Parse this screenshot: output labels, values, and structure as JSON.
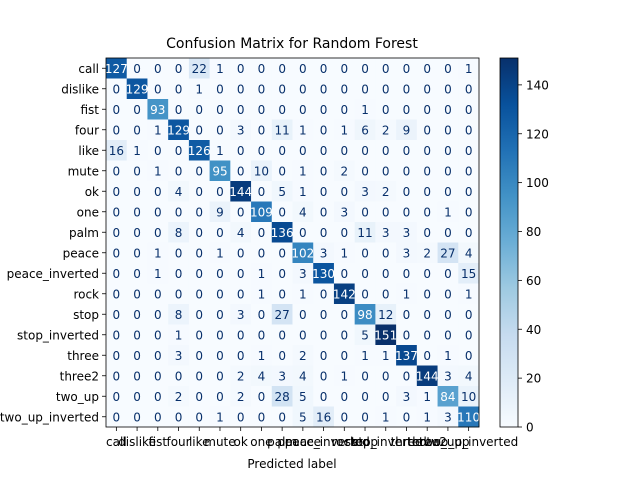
{
  "chart_data": {
    "type": "heatmap",
    "title": "Confusion Matrix for Random Forest",
    "xlabel": "Predicted label",
    "ylabel": "",
    "row_labels": [
      "call",
      "dislike",
      "fist",
      "four",
      "like",
      "mute",
      "ok",
      "one",
      "palm",
      "peace",
      "peace_inverted",
      "rock",
      "stop",
      "stop_inverted",
      "three",
      "three2",
      "two_up",
      "two_up_inverted"
    ],
    "col_labels": [
      "call",
      "dislike",
      "fist",
      "four",
      "like",
      "mute",
      "ok",
      "one",
      "palm",
      "peace",
      "peace_inverted",
      "rock",
      "stop",
      "stop_inverted",
      "three",
      "three2",
      "two_up",
      "two_up_inverted"
    ],
    "values": [
      [
        127,
        0,
        0,
        0,
        22,
        1,
        0,
        0,
        0,
        0,
        0,
        0,
        0,
        0,
        0,
        0,
        0,
        1
      ],
      [
        0,
        129,
        0,
        0,
        1,
        0,
        0,
        0,
        0,
        0,
        0,
        0,
        0,
        0,
        0,
        0,
        0,
        0
      ],
      [
        0,
        0,
        93,
        0,
        0,
        0,
        0,
        0,
        0,
        0,
        0,
        0,
        1,
        0,
        0,
        0,
        0,
        0
      ],
      [
        0,
        0,
        1,
        129,
        0,
        0,
        3,
        0,
        11,
        1,
        0,
        1,
        6,
        2,
        9,
        0,
        0,
        0
      ],
      [
        16,
        1,
        0,
        0,
        126,
        1,
        0,
        0,
        0,
        0,
        0,
        0,
        0,
        0,
        0,
        0,
        0,
        0
      ],
      [
        0,
        0,
        1,
        0,
        0,
        95,
        0,
        10,
        0,
        1,
        0,
        2,
        0,
        0,
        0,
        0,
        0,
        0
      ],
      [
        0,
        0,
        0,
        4,
        0,
        0,
        144,
        0,
        5,
        1,
        0,
        0,
        3,
        2,
        0,
        0,
        0,
        0
      ],
      [
        0,
        0,
        0,
        0,
        0,
        9,
        0,
        109,
        0,
        4,
        0,
        3,
        0,
        0,
        0,
        0,
        1,
        0
      ],
      [
        0,
        0,
        0,
        8,
        0,
        0,
        4,
        0,
        136,
        0,
        0,
        0,
        11,
        3,
        3,
        0,
        0,
        0
      ],
      [
        0,
        0,
        1,
        0,
        0,
        1,
        0,
        0,
        0,
        102,
        3,
        1,
        0,
        0,
        3,
        2,
        27,
        4
      ],
      [
        0,
        0,
        1,
        0,
        0,
        0,
        0,
        1,
        0,
        3,
        130,
        0,
        0,
        0,
        0,
        0,
        0,
        15
      ],
      [
        0,
        0,
        0,
        0,
        0,
        0,
        0,
        1,
        0,
        1,
        0,
        142,
        0,
        0,
        1,
        0,
        0,
        1
      ],
      [
        0,
        0,
        0,
        8,
        0,
        0,
        3,
        0,
        27,
        0,
        0,
        0,
        98,
        12,
        0,
        0,
        0,
        0
      ],
      [
        0,
        0,
        0,
        1,
        0,
        0,
        0,
        0,
        0,
        0,
        0,
        0,
        5,
        151,
        0,
        0,
        0,
        0
      ],
      [
        0,
        0,
        0,
        3,
        0,
        0,
        0,
        1,
        0,
        2,
        0,
        0,
        1,
        1,
        137,
        0,
        1,
        0
      ],
      [
        0,
        0,
        0,
        0,
        0,
        0,
        2,
        4,
        3,
        4,
        0,
        1,
        0,
        0,
        0,
        144,
        3,
        4
      ],
      [
        0,
        0,
        0,
        2,
        0,
        0,
        2,
        0,
        28,
        5,
        0,
        0,
        0,
        0,
        3,
        1,
        84,
        10
      ],
      [
        0,
        0,
        0,
        0,
        0,
        1,
        0,
        0,
        0,
        5,
        16,
        0,
        0,
        1,
        0,
        1,
        3,
        110
      ]
    ],
    "vmin": 0,
    "vmax": 151,
    "colormap": "Blues",
    "colorbar_ticks": [
      0,
      20,
      40,
      60,
      80,
      100,
      120,
      140
    ]
  }
}
